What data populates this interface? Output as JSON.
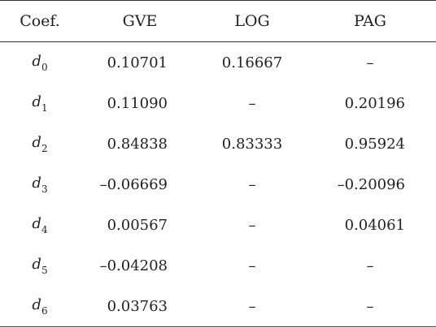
{
  "table": {
    "headers": [
      "Coef.",
      "GVE",
      "LOG",
      "PAG"
    ],
    "rows": [
      {
        "coef": "d",
        "sub": "0",
        "gve": "0.10701",
        "log": "0.16667",
        "pag": "–"
      },
      {
        "coef": "d",
        "sub": "1",
        "gve": "0.11090",
        "log": "–",
        "pag": "0.20196"
      },
      {
        "coef": "d",
        "sub": "2",
        "gve": "0.84838",
        "log": "0.83333",
        "pag": "0.95924"
      },
      {
        "coef": "d",
        "sub": "3",
        "gve": "–0.06669",
        "log": "–",
        "pag": "–0.20096"
      },
      {
        "coef": "d",
        "sub": "4",
        "gve": "0.00567",
        "log": "–",
        "pag": "0.04061"
      },
      {
        "coef": "d",
        "sub": "5",
        "gve": "–0.04208",
        "log": "–",
        "pag": "–"
      },
      {
        "coef": "d",
        "sub": "6",
        "gve": "0.03763",
        "log": "–",
        "pag": "–"
      }
    ]
  }
}
